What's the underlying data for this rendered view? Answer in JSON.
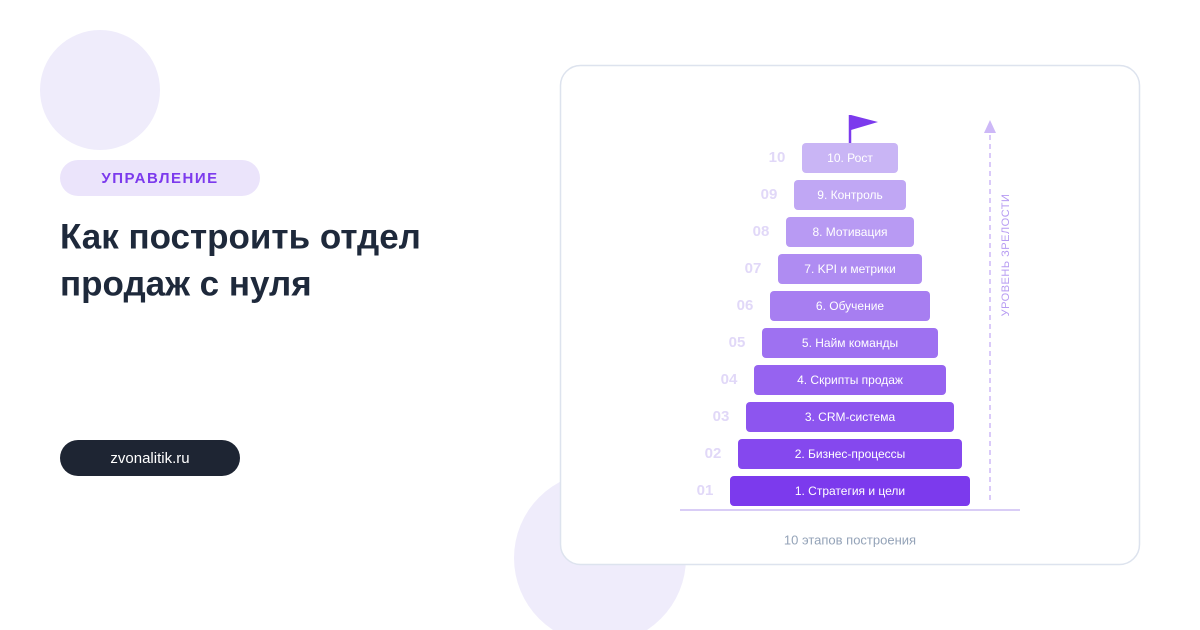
{
  "tag": "УПРАВЛЕНИЕ",
  "title": {
    "lines": [
      "Как построить отдел",
      "продаж с нуля"
    ]
  },
  "site": "zvonalitik.ru",
  "diagram": {
    "steps": [
      {
        "number": "01",
        "label": "1. Стратегия и цели"
      },
      {
        "number": "02",
        "label": "2. Бизнес-процессы"
      },
      {
        "number": "03",
        "label": "3. CRM-система"
      },
      {
        "number": "04",
        "label": "4. Скрипты продаж"
      },
      {
        "number": "05",
        "label": "5. Найм команды"
      },
      {
        "number": "06",
        "label": "6. Обучение"
      },
      {
        "number": "07",
        "label": "7. KPI и метрики"
      },
      {
        "number": "08",
        "label": "8. Мотивация"
      },
      {
        "number": "09",
        "label": "9. Контроль"
      },
      {
        "number": "10",
        "label": "10. Рост"
      }
    ],
    "axis_label": "УРОВЕНЬ ЗРЕЛОСТИ",
    "caption": "10 этапов построения"
  }
}
